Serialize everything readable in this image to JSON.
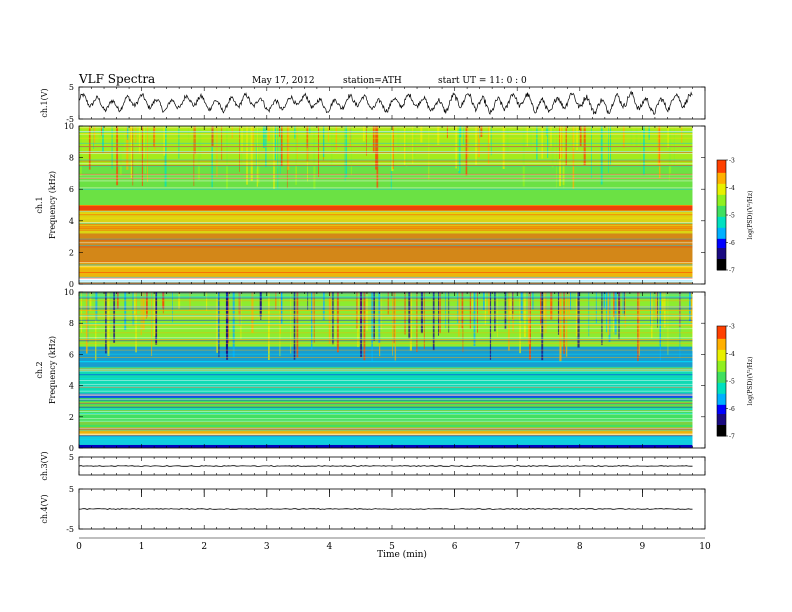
{
  "header": {
    "title": "VLF Spectra",
    "date": "May 17, 2012",
    "station": "station=ATH",
    "start": "start UT =  11: 0 : 0"
  },
  "colors": {
    "spectrogram": [
      "#000000",
      "#1a0a80",
      "#0000ff",
      "#00b0ff",
      "#00e0c0",
      "#40e060",
      "#90f020",
      "#e8f000",
      "#ffb000",
      "#ff4000",
      "#ffffff"
    ]
  },
  "chart_data": [
    {
      "type": "line",
      "panel": "ch1_waveform",
      "ylabel": "ch.1(V)",
      "ylim": [
        -5,
        5
      ],
      "yticks": [
        "5",
        "-5"
      ],
      "description_of_signal": "oscillating waveform, amplitude approx ±3 V"
    },
    {
      "type": "heatmap",
      "panel": "ch1_spectrogram",
      "ylabel": "ch.1 Frequency (kHz)",
      "ylim": [
        0,
        10
      ],
      "yticks": [
        "0",
        "2",
        "4",
        "6",
        "8",
        "10"
      ],
      "colorbar": {
        "label": "log(PSD)(V²/Hz)",
        "range": [
          -7,
          -3
        ],
        "ticks": [
          "-3",
          "-4",
          "-5",
          "-6",
          "-7"
        ]
      }
    },
    {
      "type": "heatmap",
      "panel": "ch2_spectrogram",
      "ylabel": "ch.2 Frequency (kHz)",
      "ylim": [
        0,
        10
      ],
      "yticks": [
        "0",
        "2",
        "4",
        "6",
        "8",
        "10"
      ],
      "colorbar": {
        "label": "log(PSD)(V²/Hz)",
        "range": [
          -7,
          -3
        ],
        "ticks": [
          "-3",
          "-4",
          "-5",
          "-6",
          "-7"
        ]
      }
    },
    {
      "type": "line",
      "panel": "ch3_waveform",
      "ylabel": "ch.3(V)",
      "ylim": [
        -5,
        5
      ],
      "yticks": [
        "5"
      ],
      "level": 0
    },
    {
      "type": "line",
      "panel": "ch4_waveform",
      "ylabel": "ch.4(V)",
      "ylim": [
        -5,
        5
      ],
      "yticks": [
        "5",
        "-5"
      ],
      "level": 0
    }
  ],
  "xaxis": {
    "label": "Time  (min)",
    "range": [
      0,
      10
    ],
    "ticks": [
      "0",
      "1",
      "2",
      "3",
      "4",
      "5",
      "6",
      "7",
      "8",
      "9",
      "10"
    ],
    "data_end": 9.8
  }
}
